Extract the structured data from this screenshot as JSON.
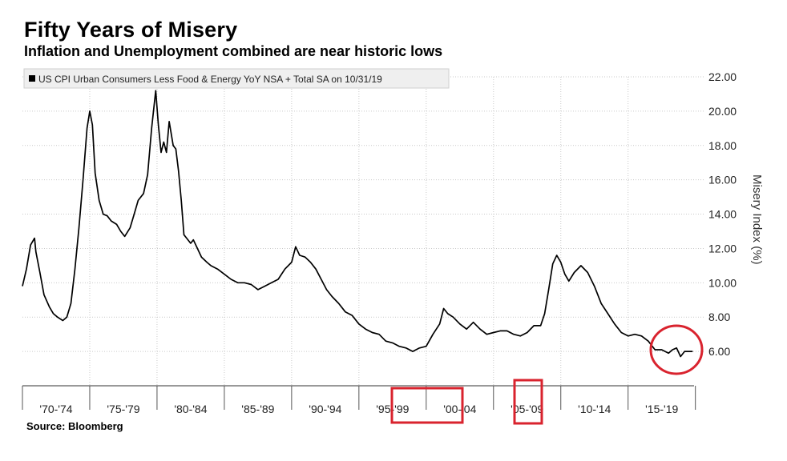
{
  "chart_data": {
    "type": "line",
    "title": "Fifty Years of Misery",
    "subtitle": "Inflation and Unemployment combined are near historic lows",
    "source": "Source: Bloomberg",
    "legend": "US CPI Urban Consumers Less Food & Energy YoY NSA + Total SA on 10/31/19",
    "legend_placement": "top-left",
    "ylabel": "Misery Index (%)",
    "y_axis_side": "right",
    "ylim": [
      4.0,
      22.0
    ],
    "yticks": [
      "22.00",
      "20.00",
      "18.00",
      "16.00",
      "14.00",
      "12.00",
      "10.00",
      "8.00",
      "6.00"
    ],
    "xlim": [
      1970.0,
      2019.9
    ],
    "xtick_labels": [
      "'70-'74",
      "'75-'79",
      "'80-'84",
      "'85-'89",
      "'90-'94",
      "'95-'99",
      "'00-'04",
      "'05-'09",
      "'10-'14",
      "'15-'19"
    ],
    "grid": true,
    "line_color": "#000000",
    "highlight_color": "#d9232e",
    "highlights": [
      {
        "shape": "rectangle",
        "around": "'95-'99 / '00-'04 boundary"
      },
      {
        "shape": "rectangle",
        "around": "'05-'09 boundary"
      },
      {
        "shape": "circle",
        "around": "2016-2019 lows"
      }
    ],
    "series": [
      {
        "x": [
          1970.0,
          1970.3,
          1970.6,
          1970.9,
          1971.0,
          1971.3,
          1971.6,
          1972.0,
          1972.3,
          1972.6,
          1973.0,
          1973.3,
          1973.6,
          1973.9,
          1974.2,
          1974.5,
          1974.8,
          1975.0,
          1975.2,
          1975.4,
          1975.7,
          1976.0,
          1976.3,
          1976.6,
          1977.0,
          1977.3,
          1977.6,
          1978.0,
          1978.3,
          1978.6,
          1979.0,
          1979.3,
          1979.6,
          1979.9,
          1980.1,
          1980.3,
          1980.5,
          1980.7,
          1980.9,
          1981.2,
          1981.4,
          1981.6,
          1981.8,
          1982.0,
          1982.2,
          1982.5,
          1982.7,
          1983.0,
          1983.3,
          1983.7,
          1984.0,
          1984.5,
          1985.0,
          1985.5,
          1986.0,
          1986.5,
          1987.0,
          1987.5,
          1988.0,
          1988.5,
          1989.0,
          1989.5,
          1990.0,
          1990.3,
          1990.6,
          1991.0,
          1991.4,
          1991.8,
          1992.2,
          1992.6,
          1993.0,
          1993.5,
          1994.0,
          1994.5,
          1995.0,
          1995.5,
          1996.0,
          1996.5,
          1997.0,
          1997.5,
          1998.0,
          1998.5,
          1999.0,
          1999.5,
          2000.0,
          2000.5,
          2001.0,
          2001.3,
          2001.6,
          2002.0,
          2002.5,
          2003.0,
          2003.5,
          2004.0,
          2004.5,
          2005.0,
          2005.5,
          2006.0,
          2006.5,
          2007.0,
          2007.5,
          2008.0,
          2008.5,
          2008.8,
          2009.1,
          2009.4,
          2009.7,
          2010.0,
          2010.3,
          2010.6,
          2011.0,
          2011.5,
          2012.0,
          2012.5,
          2013.0,
          2013.5,
          2014.0,
          2014.5,
          2015.0,
          2015.5,
          2016.0,
          2016.5,
          2017.0,
          2017.5,
          2018.0,
          2018.3,
          2018.6,
          2018.9,
          2019.2,
          2019.5,
          2019.8
        ],
        "y": [
          9.8,
          10.8,
          12.2,
          12.6,
          11.8,
          10.6,
          9.3,
          8.6,
          8.2,
          8.0,
          7.8,
          8.0,
          8.8,
          10.8,
          13.2,
          16.0,
          19.0,
          20.0,
          19.2,
          16.4,
          14.8,
          14.0,
          13.9,
          13.6,
          13.4,
          13.0,
          12.7,
          13.2,
          14.0,
          14.8,
          15.2,
          16.3,
          19.0,
          21.2,
          19.2,
          17.6,
          18.2,
          17.6,
          19.4,
          18.0,
          17.8,
          16.5,
          14.8,
          12.8,
          12.6,
          12.3,
          12.5,
          12.0,
          11.5,
          11.2,
          11.0,
          10.8,
          10.5,
          10.2,
          10.0,
          10.0,
          9.9,
          9.6,
          9.8,
          10.0,
          10.2,
          10.8,
          11.2,
          12.1,
          11.6,
          11.5,
          11.2,
          10.8,
          10.2,
          9.6,
          9.2,
          8.8,
          8.3,
          8.1,
          7.6,
          7.3,
          7.1,
          7.0,
          6.6,
          6.5,
          6.3,
          6.2,
          6.0,
          6.2,
          6.3,
          7.0,
          7.6,
          8.5,
          8.2,
          8.0,
          7.6,
          7.3,
          7.7,
          7.3,
          7.0,
          7.1,
          7.2,
          7.2,
          7.0,
          6.9,
          7.1,
          7.5,
          7.5,
          8.2,
          9.6,
          11.1,
          11.6,
          11.2,
          10.5,
          10.1,
          10.6,
          11.0,
          10.6,
          9.8,
          8.8,
          8.2,
          7.6,
          7.1,
          6.9,
          7.0,
          6.9,
          6.6,
          6.1,
          6.1,
          5.9,
          6.1,
          6.2,
          5.7,
          6.0,
          6.0,
          6.0
        ]
      }
    ]
  }
}
